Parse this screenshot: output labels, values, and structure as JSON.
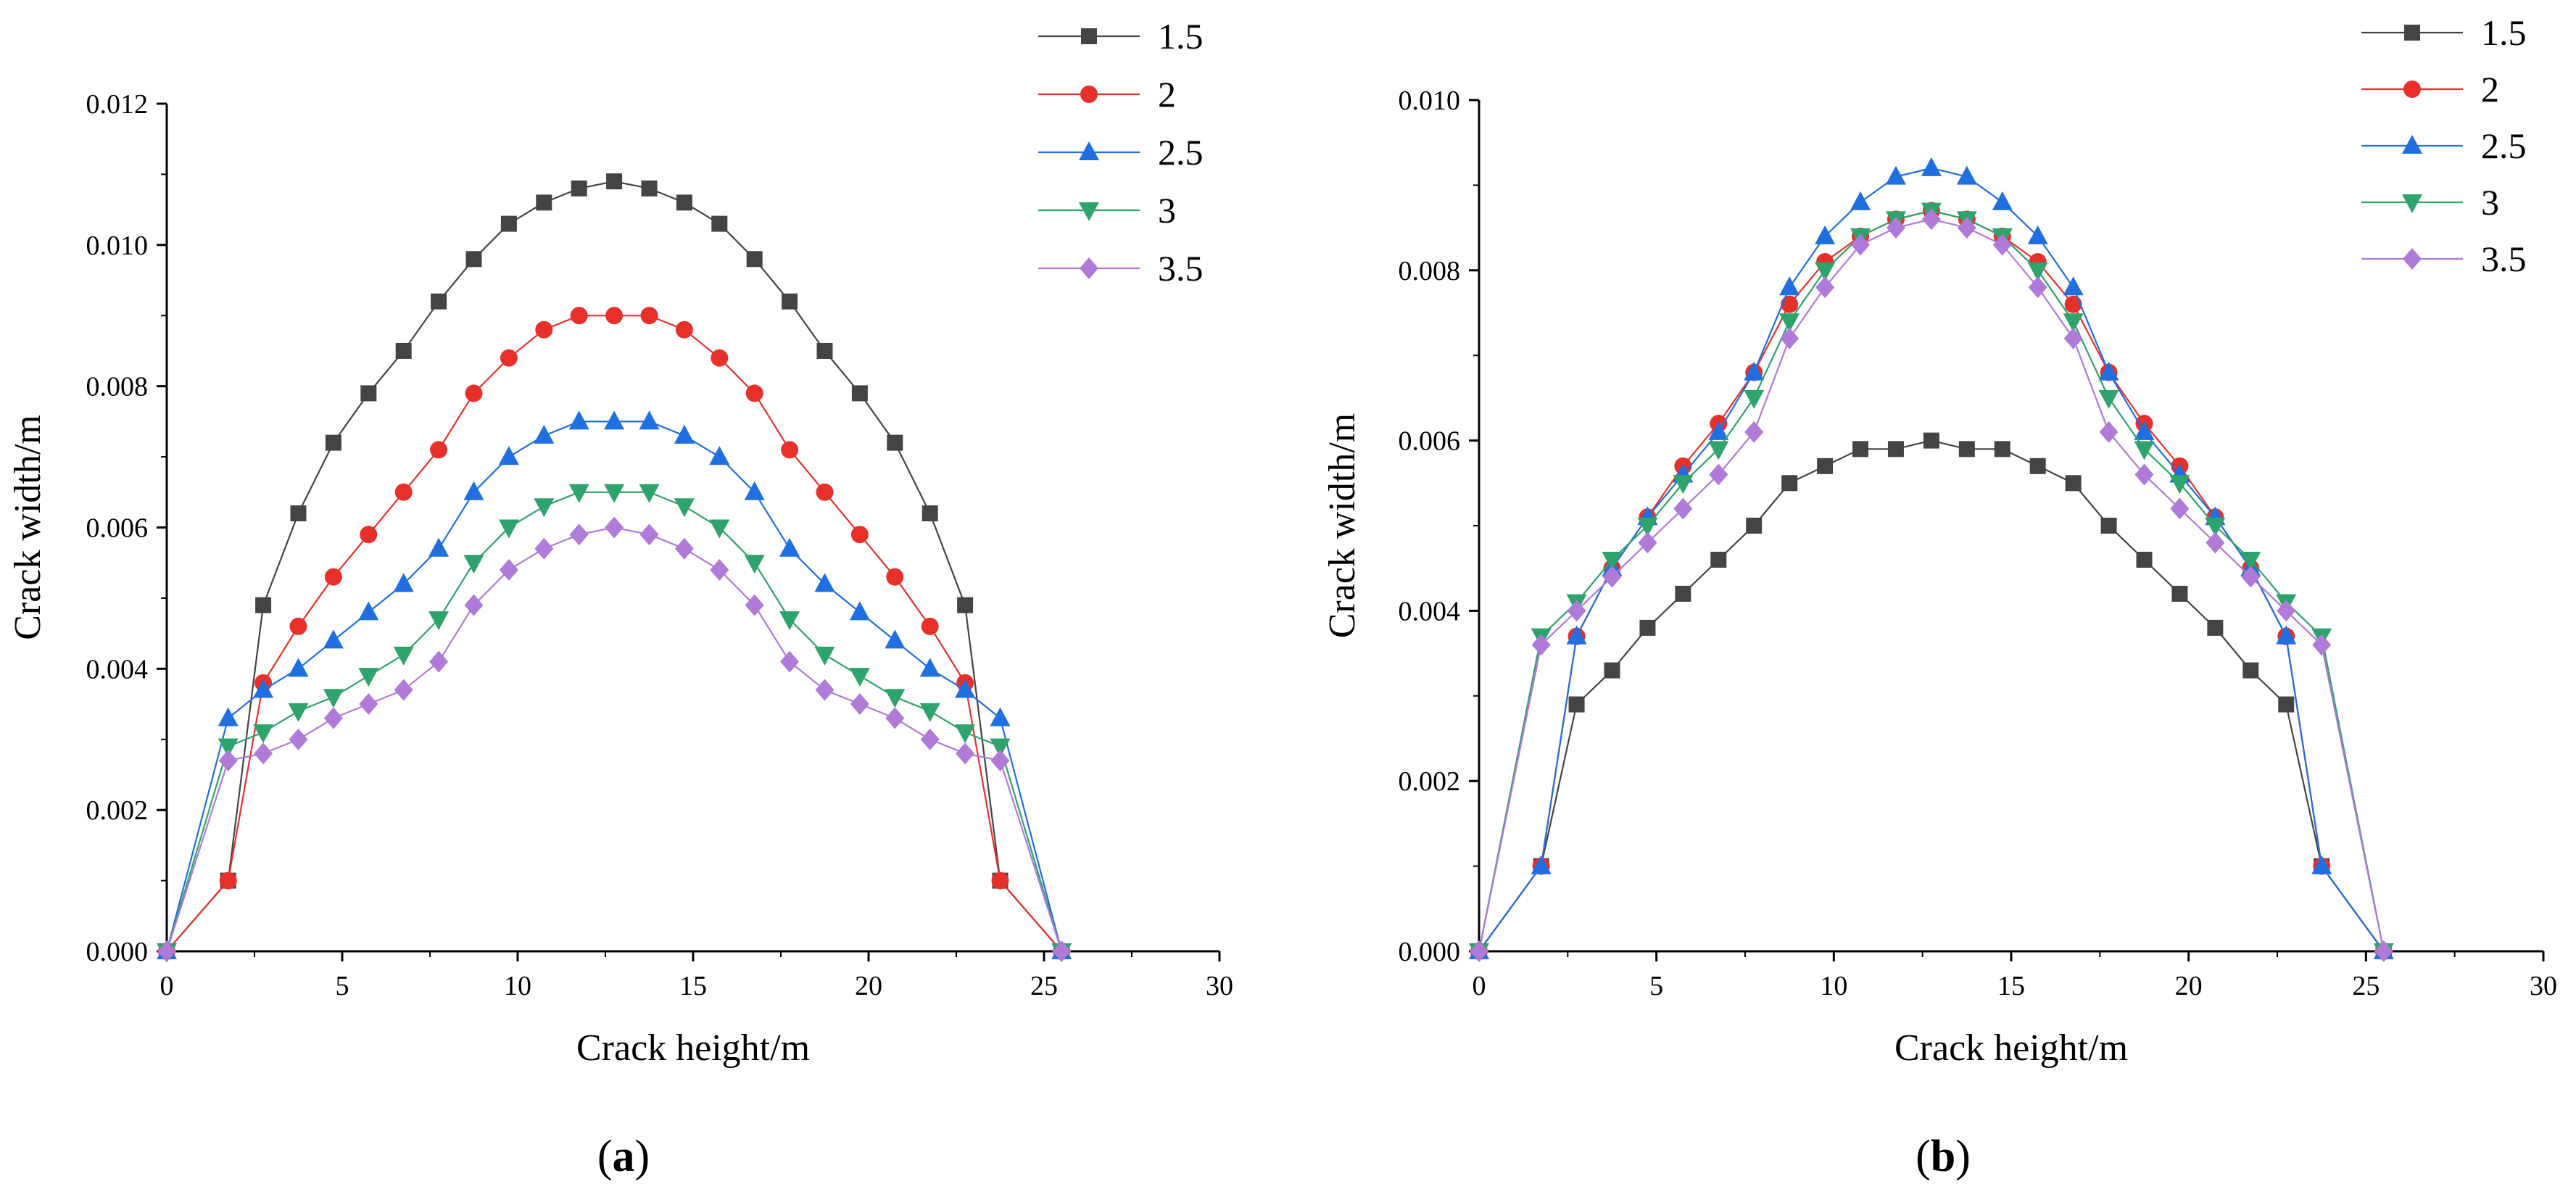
{
  "chart_data": [
    {
      "type": "line",
      "panel_label": "a",
      "xlabel": "Crack height/m",
      "ylabel": "Crack width/m",
      "xlim": [
        0,
        30
      ],
      "ylim": [
        0,
        0.012
      ],
      "xticks": [
        "0",
        "5",
        "10",
        "15",
        "20",
        "25",
        "30"
      ],
      "yticks": [
        "0.000",
        "0.002",
        "0.004",
        "0.006",
        "0.008",
        "0.010",
        "0.012"
      ],
      "legend_position": "top-right",
      "series": [
        {
          "name": "1.5",
          "color": "#444444",
          "marker": "square",
          "x": [
            0,
            1.75,
            2.75,
            3.75,
            4.75,
            5.75,
            6.75,
            7.75,
            8.75,
            9.75,
            10.75,
            11.75,
            12.75,
            13.75,
            14.75,
            15.75,
            16.75,
            17.75,
            18.75,
            19.75,
            20.75,
            21.75,
            22.75,
            23.75,
            25.5
          ],
          "y": [
            0,
            0.001,
            0.0049,
            0.0062,
            0.0072,
            0.0079,
            0.0085,
            0.0092,
            0.0098,
            0.0103,
            0.0106,
            0.0108,
            0.0109,
            0.0108,
            0.0106,
            0.0103,
            0.0098,
            0.0092,
            0.0085,
            0.0079,
            0.0072,
            0.0062,
            0.0049,
            0.001,
            0
          ]
        },
        {
          "name": "2",
          "color": "#e8302b",
          "marker": "circle",
          "x": [
            0,
            1.75,
            2.75,
            3.75,
            4.75,
            5.75,
            6.75,
            7.75,
            8.75,
            9.75,
            10.75,
            11.75,
            12.75,
            13.75,
            14.75,
            15.75,
            16.75,
            17.75,
            18.75,
            19.75,
            20.75,
            21.75,
            22.75,
            23.75,
            25.5
          ],
          "y": [
            0,
            0.001,
            0.0038,
            0.0046,
            0.0053,
            0.0059,
            0.0065,
            0.0071,
            0.0079,
            0.0084,
            0.0088,
            0.009,
            0.009,
            0.009,
            0.0088,
            0.0084,
            0.0079,
            0.0071,
            0.0065,
            0.0059,
            0.0053,
            0.0046,
            0.0038,
            0.001,
            0
          ]
        },
        {
          "name": "2.5",
          "color": "#1f6fe0",
          "marker": "triangle-up",
          "x": [
            0,
            1.75,
            2.75,
            3.75,
            4.75,
            5.75,
            6.75,
            7.75,
            8.75,
            9.75,
            10.75,
            11.75,
            12.75,
            13.75,
            14.75,
            15.75,
            16.75,
            17.75,
            18.75,
            19.75,
            20.75,
            21.75,
            22.75,
            23.75,
            25.5
          ],
          "y": [
            0,
            0.0033,
            0.0037,
            0.004,
            0.0044,
            0.0048,
            0.0052,
            0.0057,
            0.0065,
            0.007,
            0.0073,
            0.0075,
            0.0075,
            0.0075,
            0.0073,
            0.007,
            0.0065,
            0.0057,
            0.0052,
            0.0048,
            0.0044,
            0.004,
            0.0037,
            0.0033,
            0
          ]
        },
        {
          "name": "3",
          "color": "#2ea36b",
          "marker": "triangle-down",
          "x": [
            0,
            1.75,
            2.75,
            3.75,
            4.75,
            5.75,
            6.75,
            7.75,
            8.75,
            9.75,
            10.75,
            11.75,
            12.75,
            13.75,
            14.75,
            15.75,
            16.75,
            17.75,
            18.75,
            19.75,
            20.75,
            21.75,
            22.75,
            23.75,
            25.5
          ],
          "y": [
            0,
            0.0029,
            0.0031,
            0.0034,
            0.0036,
            0.0039,
            0.0042,
            0.0047,
            0.0055,
            0.006,
            0.0063,
            0.0065,
            0.0065,
            0.0065,
            0.0063,
            0.006,
            0.0055,
            0.0047,
            0.0042,
            0.0039,
            0.0036,
            0.0034,
            0.0031,
            0.0029,
            0
          ]
        },
        {
          "name": "3.5",
          "color": "#b07ad8",
          "marker": "diamond",
          "x": [
            0,
            1.75,
            2.75,
            3.75,
            4.75,
            5.75,
            6.75,
            7.75,
            8.75,
            9.75,
            10.75,
            11.75,
            12.75,
            13.75,
            14.75,
            15.75,
            16.75,
            17.75,
            18.75,
            19.75,
            20.75,
            21.75,
            22.75,
            23.75,
            25.5
          ],
          "y": [
            0,
            0.0027,
            0.0028,
            0.003,
            0.0033,
            0.0035,
            0.0037,
            0.0041,
            0.0049,
            0.0054,
            0.0057,
            0.0059,
            0.006,
            0.0059,
            0.0057,
            0.0054,
            0.0049,
            0.0041,
            0.0037,
            0.0035,
            0.0033,
            0.003,
            0.0028,
            0.0027,
            0
          ]
        }
      ]
    },
    {
      "type": "line",
      "panel_label": "b",
      "xlabel": "Crack height/m",
      "ylabel": "Crack width/m",
      "xlim": [
        0,
        30
      ],
      "ylim": [
        0,
        0.01
      ],
      "xticks": [
        "0",
        "5",
        "10",
        "15",
        "20",
        "25",
        "30"
      ],
      "yticks": [
        "0.000",
        "0.002",
        "0.004",
        "0.006",
        "0.008",
        "0.010"
      ],
      "legend_position": "top-right",
      "series": [
        {
          "name": "1.5",
          "color": "#444444",
          "marker": "square",
          "x": [
            0,
            1.75,
            2.75,
            3.75,
            4.75,
            5.75,
            6.75,
            7.75,
            8.75,
            9.75,
            10.75,
            11.75,
            12.75,
            13.75,
            14.75,
            15.75,
            16.75,
            17.75,
            18.75,
            19.75,
            20.75,
            21.75,
            22.75,
            23.75,
            25.5
          ],
          "y": [
            0,
            0.001,
            0.0029,
            0.0033,
            0.0038,
            0.0042,
            0.0046,
            0.005,
            0.0055,
            0.0057,
            0.0059,
            0.0059,
            0.006,
            0.0059,
            0.0059,
            0.0057,
            0.0055,
            0.005,
            0.0046,
            0.0042,
            0.0038,
            0.0033,
            0.0029,
            0.001,
            0
          ]
        },
        {
          "name": "2",
          "color": "#e8302b",
          "marker": "circle",
          "x": [
            0,
            1.75,
            2.75,
            3.75,
            4.75,
            5.75,
            6.75,
            7.75,
            8.75,
            9.75,
            10.75,
            11.75,
            12.75,
            13.75,
            14.75,
            15.75,
            16.75,
            17.75,
            18.75,
            19.75,
            20.75,
            21.75,
            22.75,
            23.75,
            25.5
          ],
          "y": [
            0,
            0.001,
            0.0037,
            0.0045,
            0.0051,
            0.0057,
            0.0062,
            0.0068,
            0.0076,
            0.0081,
            0.0084,
            0.0086,
            0.0087,
            0.0086,
            0.0084,
            0.0081,
            0.0076,
            0.0068,
            0.0062,
            0.0057,
            0.0051,
            0.0045,
            0.0037,
            0.001,
            0
          ]
        },
        {
          "name": "2.5",
          "color": "#1f6fe0",
          "marker": "triangle-up",
          "x": [
            0,
            1.75,
            2.75,
            3.75,
            4.75,
            5.75,
            6.75,
            7.75,
            8.75,
            9.75,
            10.75,
            11.75,
            12.75,
            13.75,
            14.75,
            15.75,
            16.75,
            17.75,
            18.75,
            19.75,
            20.75,
            21.75,
            22.75,
            23.75,
            25.5
          ],
          "y": [
            0,
            0.001,
            0.0037,
            0.0045,
            0.0051,
            0.0056,
            0.0061,
            0.0068,
            0.0078,
            0.0084,
            0.0088,
            0.0091,
            0.0092,
            0.0091,
            0.0088,
            0.0084,
            0.0078,
            0.0068,
            0.0061,
            0.0056,
            0.0051,
            0.0045,
            0.0037,
            0.001,
            0
          ]
        },
        {
          "name": "3",
          "color": "#2ea36b",
          "marker": "triangle-down",
          "x": [
            0,
            1.75,
            2.75,
            3.75,
            4.75,
            5.75,
            6.75,
            7.75,
            8.75,
            9.75,
            10.75,
            11.75,
            12.75,
            13.75,
            14.75,
            15.75,
            16.75,
            17.75,
            18.75,
            19.75,
            20.75,
            21.75,
            22.75,
            23.75,
            25.5
          ],
          "y": [
            0,
            0.0037,
            0.0041,
            0.0046,
            0.005,
            0.0055,
            0.0059,
            0.0065,
            0.0074,
            0.008,
            0.0084,
            0.0086,
            0.0087,
            0.0086,
            0.0084,
            0.008,
            0.0074,
            0.0065,
            0.0059,
            0.0055,
            0.005,
            0.0046,
            0.0041,
            0.0037,
            0
          ]
        },
        {
          "name": "3.5",
          "color": "#b07ad8",
          "marker": "diamond",
          "x": [
            0,
            1.75,
            2.75,
            3.75,
            4.75,
            5.75,
            6.75,
            7.75,
            8.75,
            9.75,
            10.75,
            11.75,
            12.75,
            13.75,
            14.75,
            15.75,
            16.75,
            17.75,
            18.75,
            19.75,
            20.75,
            21.75,
            22.75,
            23.75,
            25.5
          ],
          "y": [
            0,
            0.0036,
            0.004,
            0.0044,
            0.0048,
            0.0052,
            0.0056,
            0.0061,
            0.0072,
            0.0078,
            0.0083,
            0.0085,
            0.0086,
            0.0085,
            0.0083,
            0.0078,
            0.0072,
            0.0061,
            0.0056,
            0.0052,
            0.0048,
            0.0044,
            0.004,
            0.0036,
            0
          ]
        }
      ]
    }
  ]
}
